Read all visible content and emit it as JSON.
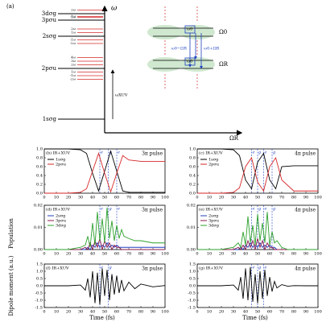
{
  "diagram": {
    "label": "(a)",
    "axis_y": "ω",
    "axis_x": "ΩR",
    "xuv": "ωXUV",
    "levels": [
      {
        "label": "3dσg",
        "ladder": [
          "2ω",
          "1ω"
        ]
      },
      {
        "label": "3pσu",
        "ladder": [
          "-1ω"
        ]
      },
      {
        "label": "2sσg",
        "ladder": [
          "2ω",
          "1ω",
          "-1ω",
          "-2ω"
        ]
      },
      {
        "label": "2pσu",
        "ladder": [
          "4ω",
          "3ω",
          "2ω",
          "1ω",
          "-1ω",
          "-2ω"
        ]
      },
      {
        "label": "1sσg",
        "ladder": []
      }
    ],
    "gap_labels": [
      "Ω0",
      "ΩR"
    ],
    "inner_labels": [
      "ω0",
      "ω0"
    ],
    "transitions": [
      "ω0−ΩR",
      "ω0+ΩR"
    ]
  },
  "figure": {
    "population_label": "Population",
    "dipole_label": "Dipole moment (a.u.)",
    "time_label": "Time (fs)"
  },
  "chart_data": [
    {
      "type": "line",
      "label": "(b) IR+XUV",
      "pulse": "3π pulse",
      "xlim": [
        0,
        100
      ],
      "xticks": [
        0,
        10,
        20,
        30,
        40,
        50,
        60,
        70,
        80,
        90,
        100
      ],
      "ylim": [
        0,
        1
      ],
      "yticks": [
        {
          "value": 0,
          "label": "0.0"
        },
        0.2,
        0.4,
        0.6,
        0.8,
        {
          "value": 1,
          "label": "1.0"
        }
      ],
      "x": [
        0,
        10,
        20,
        30,
        35,
        40,
        45,
        50,
        55,
        60,
        65,
        70,
        80,
        90,
        100
      ],
      "series": [
        {
          "name": "1sσg",
          "color": "#000000",
          "values": [
            1,
            1,
            1,
            0.98,
            0.9,
            0.45,
            0.05,
            0.5,
            0.95,
            0.5,
            0.05,
            0.02,
            0.02,
            0.02,
            0.02
          ]
        },
        {
          "name": "2pσu",
          "color": "#d62728",
          "values": [
            0,
            0,
            0,
            0.02,
            0.1,
            0.5,
            0.9,
            0.45,
            0.03,
            0.45,
            0.85,
            0.75,
            0.72,
            0.72,
            0.72
          ]
        }
      ],
      "vlines": [
        {
          "x": 46,
          "label": "e"
        },
        {
          "x": 53,
          "label": "g"
        },
        {
          "x": 60,
          "label": "e"
        }
      ]
    },
    {
      "type": "line",
      "label": "(c) IR+XUV",
      "pulse": "4π pulse",
      "xlim": [
        0,
        100
      ],
      "xticks": [
        0,
        10,
        20,
        30,
        40,
        50,
        60,
        70,
        80,
        90,
        100
      ],
      "ylim": [
        0,
        1
      ],
      "yticks": [
        {
          "value": 0,
          "label": "0.0"
        },
        0.2,
        0.4,
        0.6,
        0.8,
        {
          "value": 1,
          "label": "1.0"
        }
      ],
      "x": [
        0,
        10,
        20,
        30,
        35,
        40,
        45,
        50,
        55,
        60,
        65,
        70,
        80,
        90,
        100
      ],
      "series": [
        {
          "name": "1sσg",
          "color": "#000000",
          "values": [
            1,
            1,
            1,
            0.98,
            0.85,
            0.3,
            0.1,
            0.7,
            0.9,
            0.3,
            0.1,
            0.6,
            0.62,
            0.62,
            0.62
          ]
        },
        {
          "name": "2pσu",
          "color": "#d62728",
          "values": [
            0,
            0,
            0,
            0.02,
            0.12,
            0.6,
            0.8,
            0.25,
            0.05,
            0.6,
            0.8,
            0.3,
            0.05,
            0.05,
            0.05
          ]
        }
      ],
      "vlines": [
        {
          "x": 45,
          "label": "e"
        },
        {
          "x": 50,
          "label": "g"
        },
        {
          "x": 55,
          "label": "e"
        },
        {
          "x": 62,
          "label": "g"
        }
      ]
    },
    {
      "type": "line",
      "label": "(d) IR+XUV",
      "pulse": "3π pulse",
      "xlim": [
        0,
        100
      ],
      "xticks": [
        0,
        10,
        20,
        30,
        40,
        50,
        60,
        70,
        80,
        90,
        100
      ],
      "ylim": [
        0,
        0.02
      ],
      "yticks": [
        {
          "value": 0,
          "label": "0.00"
        },
        0.01,
        0.02
      ],
      "x": [
        0,
        10,
        20,
        30,
        34,
        36,
        38,
        40,
        42,
        44,
        46,
        48,
        50,
        52,
        54,
        56,
        58,
        60,
        62,
        64,
        66,
        70,
        75,
        80,
        90,
        100
      ],
      "series": [
        {
          "name": "2sσg",
          "color": "#1f3fbf",
          "values": [
            0,
            0,
            0,
            0,
            0,
            0.001,
            0,
            0.002,
            0.001,
            0.003,
            0.001,
            0.002,
            0.001,
            0.003,
            0.001,
            0.002,
            0.001,
            0.002,
            0.001,
            0.001,
            0.001,
            0.001,
            0.001,
            0.001,
            0.001,
            0.001
          ]
        },
        {
          "name": "3pσu",
          "color": "#8b1a4a",
          "values": [
            0,
            0,
            0,
            0,
            0.001,
            0,
            0.003,
            0,
            0.004,
            0.001,
            0.005,
            0,
            0.004,
            0.001,
            0.003,
            0,
            0.002,
            0.001,
            0.001,
            0,
            0,
            0,
            0,
            0,
            0,
            0
          ]
        },
        {
          "name": "3dσg",
          "color": "#2ca02c",
          "values": [
            0,
            0,
            0,
            0.001,
            0.002,
            0.006,
            0.001,
            0.012,
            0.002,
            0.017,
            0.004,
            0.014,
            0.003,
            0.019,
            0.005,
            0.013,
            0.004,
            0.011,
            0.005,
            0.009,
            0.006,
            0.005,
            0.004,
            0.004,
            0.003,
            0.003
          ]
        }
      ],
      "vlines": [
        {
          "x": 46,
          "label": "e"
        },
        {
          "x": 53,
          "label": "g"
        },
        {
          "x": 60,
          "label": "e"
        }
      ]
    },
    {
      "type": "line",
      "label": "(e) IR+XUV",
      "pulse": "4π pulse",
      "xlim": [
        0,
        100
      ],
      "xticks": [
        0,
        10,
        20,
        30,
        40,
        50,
        60,
        70,
        80,
        90,
        100
      ],
      "ylim": [
        0,
        0.02
      ],
      "yticks": [
        {
          "value": 0,
          "label": "0.00"
        },
        0.01,
        0.02
      ],
      "x": [
        0,
        10,
        20,
        30,
        34,
        36,
        38,
        40,
        42,
        44,
        46,
        48,
        50,
        52,
        54,
        56,
        58,
        60,
        62,
        64,
        66,
        70,
        75,
        80,
        90,
        100
      ],
      "series": [
        {
          "name": "2sσg",
          "color": "#1f3fbf",
          "values": [
            0,
            0,
            0,
            0,
            0,
            0.001,
            0,
            0.002,
            0.001,
            0.003,
            0.001,
            0.002,
            0.001,
            0.003,
            0.001,
            0.002,
            0.001,
            0.002,
            0.001,
            0.001,
            0,
            0,
            0,
            0,
            0,
            0
          ]
        },
        {
          "name": "3pσu",
          "color": "#8b1a4a",
          "values": [
            0,
            0,
            0,
            0,
            0.001,
            0,
            0.002,
            0,
            0.004,
            0.001,
            0.004,
            0,
            0.005,
            0.001,
            0.004,
            0,
            0.003,
            0.001,
            0.001,
            0,
            0,
            0,
            0,
            0,
            0,
            0
          ]
        },
        {
          "name": "3dσg",
          "color": "#2ca02c",
          "values": [
            0,
            0,
            0,
            0.001,
            0.003,
            0.001,
            0.008,
            0.002,
            0.015,
            0.003,
            0.011,
            0.002,
            0.016,
            0.004,
            0.012,
            0.003,
            0.017,
            0.002,
            0.008,
            0.003,
            0.004,
            0.001,
            0,
            0,
            0,
            0
          ]
        }
      ],
      "vlines": [
        {
          "x": 45,
          "label": "e"
        },
        {
          "x": 50,
          "label": "g"
        },
        {
          "x": 55,
          "label": "e"
        },
        {
          "x": 62,
          "label": "g"
        }
      ]
    },
    {
      "type": "line",
      "label": "(f) IR+XUV",
      "pulse": "3π pulse",
      "xlim": [
        0,
        100
      ],
      "xticks": [
        0,
        10,
        20,
        30,
        40,
        50,
        60,
        70,
        80,
        90,
        100
      ],
      "ylim": [
        -1.5,
        1.5
      ],
      "yticks": [
        -1.5,
        {
          "value": -1,
          "label": "-1.0"
        },
        -0.5,
        {
          "value": 0,
          "label": "0.0"
        },
        0.5,
        {
          "value": 1,
          "label": "1.0"
        },
        1.5
      ],
      "x": [
        0,
        10,
        20,
        30,
        34,
        36,
        38,
        40,
        42,
        44,
        46,
        48,
        50,
        52,
        54,
        56,
        58,
        60,
        62,
        64,
        66,
        70,
        75,
        80,
        90,
        100
      ],
      "series": [
        {
          "color": "#000000",
          "values": [
            0,
            0,
            0,
            0.05,
            -0.3,
            0.5,
            -0.8,
            1.0,
            -1.2,
            0.9,
            -1.3,
            1.2,
            -0.7,
            1.1,
            -1.0,
            0.8,
            -0.6,
            0.7,
            -0.5,
            0.4,
            -0.35,
            0.25,
            -0.2,
            0.12,
            -0.07,
            0.02
          ]
        }
      ],
      "vlines": [
        {
          "x": 46,
          "label": "e"
        },
        {
          "x": 53,
          "label": "g"
        }
      ]
    },
    {
      "type": "line",
      "label": "(g) IR+XUV",
      "pulse": "4π pulse",
      "xlim": [
        0,
        100
      ],
      "xticks": [
        0,
        10,
        20,
        30,
        40,
        50,
        60,
        70,
        80,
        90,
        100
      ],
      "ylim": [
        -1.5,
        1.5
      ],
      "yticks": [
        -1.5,
        {
          "value": -1,
          "label": "-1.0"
        },
        -0.5,
        {
          "value": 0,
          "label": "0.0"
        },
        0.5,
        {
          "value": 1,
          "label": "1.0"
        },
        1.5
      ],
      "x": [
        0,
        10,
        20,
        30,
        34,
        36,
        38,
        40,
        42,
        44,
        46,
        48,
        50,
        52,
        54,
        56,
        58,
        60,
        62,
        64,
        66,
        70,
        75,
        80,
        90,
        100
      ],
      "series": [
        {
          "color": "#000000",
          "values": [
            0,
            0,
            0,
            0.05,
            -0.3,
            0.6,
            -0.9,
            1.2,
            -1.0,
            1.3,
            -1.1,
            0.8,
            -1.2,
            1.0,
            -0.9,
            1.1,
            -0.7,
            0.6,
            -0.4,
            0.3,
            -0.15,
            0.08,
            -0.03,
            0.01,
            0,
            0
          ]
        }
      ],
      "vlines": [
        {
          "x": 45,
          "label": "e"
        },
        {
          "x": 50,
          "label": "g"
        },
        {
          "x": 55,
          "label": "e"
        }
      ]
    }
  ]
}
